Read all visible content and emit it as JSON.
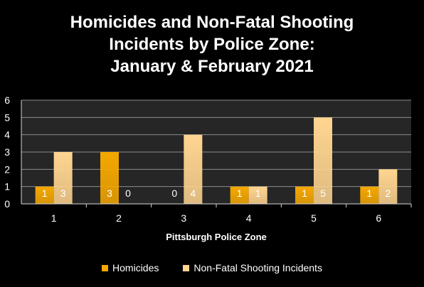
{
  "chart_data": {
    "type": "bar",
    "title_lines": [
      "Homicides and Non-Fatal Shooting",
      "Incidents by Police Zone:",
      "January & February 2021"
    ],
    "xlabel": "Pittsburgh Police Zone",
    "ylabel": "",
    "categories": [
      "1",
      "2",
      "3",
      "4",
      "5",
      "6"
    ],
    "ylim": [
      0,
      6
    ],
    "yticks": [
      "0",
      "1",
      "2",
      "3",
      "4",
      "5",
      "6"
    ],
    "grid": true,
    "legend_position": "bottom",
    "series": [
      {
        "name": "Homicides",
        "values": [
          1,
          3,
          0,
          1,
          1,
          1
        ],
        "labels": [
          "1",
          "3",
          "0",
          "1",
          "1",
          "1"
        ],
        "color": "#F5A800"
      },
      {
        "name": "Non-Fatal Shooting Incidents",
        "values": [
          3,
          0,
          4,
          1,
          5,
          2
        ],
        "labels": [
          "3",
          "0",
          "4",
          "1",
          "5",
          "2"
        ],
        "color": "#FFD590"
      }
    ],
    "plot_background": "#262626",
    "gridline_color": "#8C8C8C"
  }
}
